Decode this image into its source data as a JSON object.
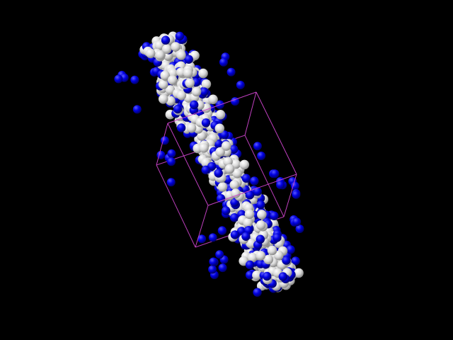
{
  "viewer": {
    "background_color": "#000000",
    "atom_types": [
      {
        "name": "white-atoms",
        "color": "#e8e8e8"
      },
      {
        "name": "blue-atoms",
        "color": "#0000e6"
      }
    ],
    "simulation_box_color": "#cc44cc",
    "simulation_box_visible": true
  }
}
